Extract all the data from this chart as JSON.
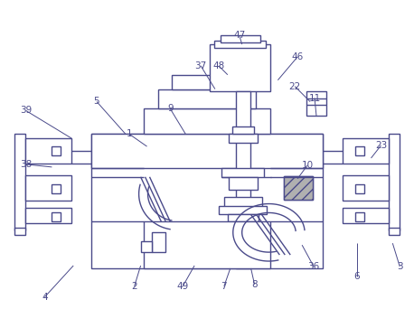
{
  "bg_color": "#ffffff",
  "line_color": "#4a4a8a",
  "lw": 1.0,
  "labels": [
    [
      "1",
      142,
      148
    ],
    [
      "2",
      148,
      318
    ],
    [
      "3",
      444,
      296
    ],
    [
      "4",
      48,
      330
    ],
    [
      "5",
      106,
      112
    ],
    [
      "6",
      396,
      307
    ],
    [
      "7",
      248,
      318
    ],
    [
      "8",
      282,
      316
    ],
    [
      "9",
      188,
      120
    ],
    [
      "10",
      341,
      183
    ],
    [
      "11",
      349,
      108
    ],
    [
      "22",
      327,
      95
    ],
    [
      "23",
      423,
      161
    ],
    [
      "36",
      348,
      296
    ],
    [
      "37",
      222,
      72
    ],
    [
      "38",
      27,
      182
    ],
    [
      "39",
      27,
      122
    ],
    [
      "46",
      330,
      62
    ],
    [
      "47",
      265,
      38
    ],
    [
      "48",
      242,
      72
    ],
    [
      "49",
      202,
      318
    ]
  ]
}
